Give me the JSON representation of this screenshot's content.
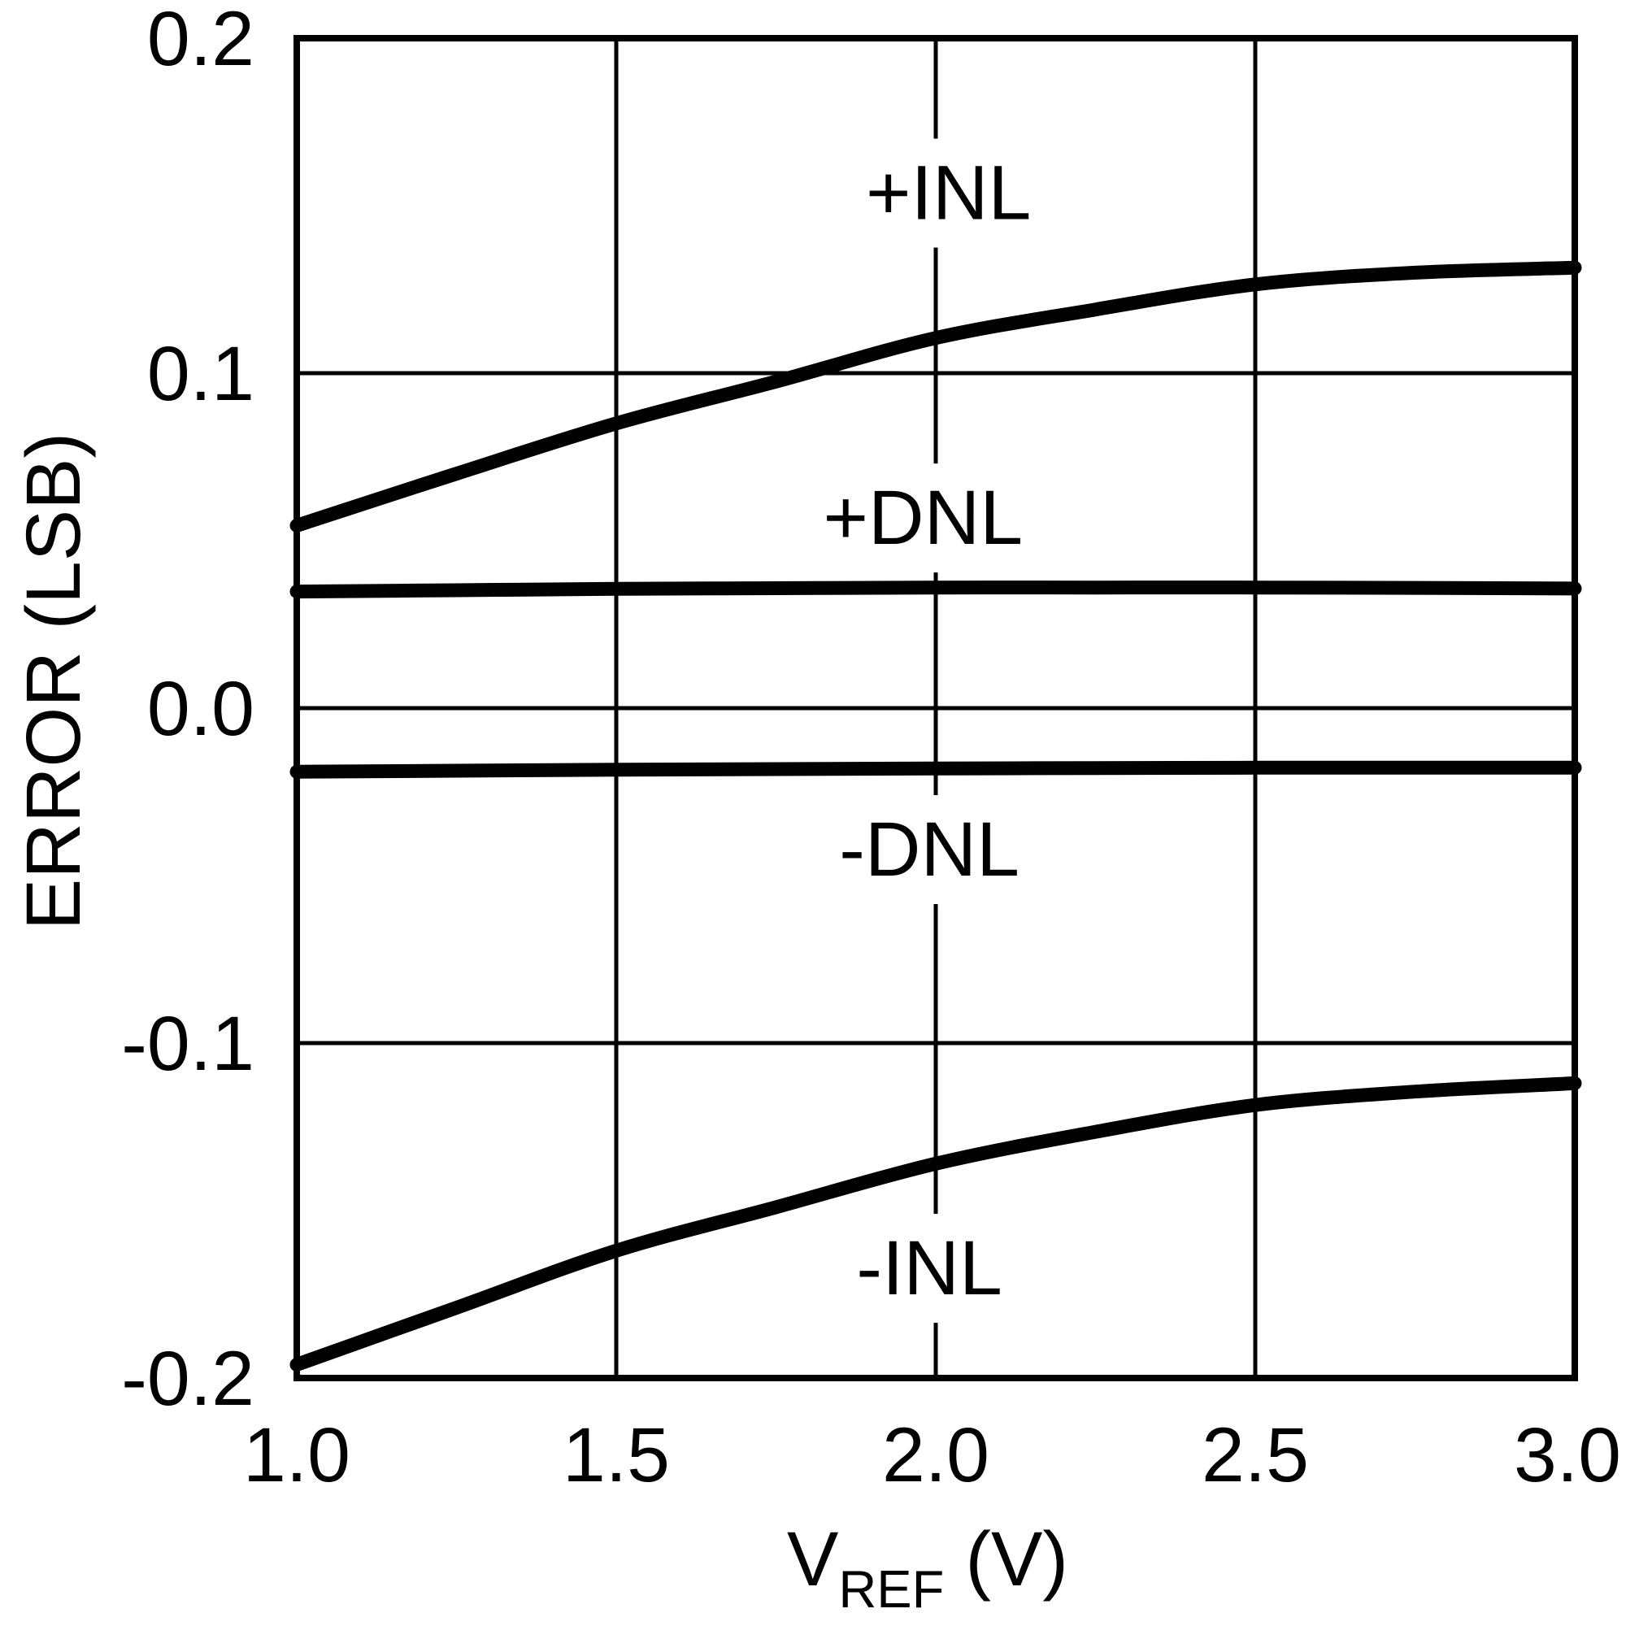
{
  "figure": {
    "background": "#ffffff",
    "ink": "#000000"
  },
  "chart_data": {
    "type": "line",
    "title": "",
    "xlabel": {
      "main": "V",
      "sub": "REF",
      "unit": "(V)"
    },
    "ylabel": "ERROR (LSB)",
    "xlim": [
      1.0,
      3.0
    ],
    "ylim": [
      -0.2,
      0.2
    ],
    "grid": true,
    "legend_position": "none (curves labeled inline on plot)",
    "x_ticks": [
      {
        "v": 1.0,
        "label": "1.0"
      },
      {
        "v": 1.5,
        "label": "1.5"
      },
      {
        "v": 2.0,
        "label": "2.0"
      },
      {
        "v": 2.5,
        "label": "2.5"
      },
      {
        "v": 3.0,
        "label": "3.0"
      }
    ],
    "y_ticks": [
      {
        "v": 0.2,
        "label": "0.2"
      },
      {
        "v": 0.1,
        "label": "0.1"
      },
      {
        "v": 0.0,
        "label": "0.0"
      },
      {
        "v": -0.1,
        "label": "-0.1"
      },
      {
        "v": -0.2,
        "label": "-0.2"
      }
    ],
    "x": [
      1.0,
      1.25,
      1.5,
      1.75,
      2.0,
      2.25,
      2.5,
      2.75,
      3.0
    ],
    "series": [
      {
        "name": "+INL",
        "values": [
          0.0545,
          0.07,
          0.085,
          0.0975,
          0.1105,
          0.119,
          0.1265,
          0.13,
          0.1315
        ],
        "label": {
          "text": "+INL",
          "x": 2.02,
          "y": 0.154
        }
      },
      {
        "name": "+DNL",
        "values": [
          0.0348,
          0.0352,
          0.0356,
          0.0358,
          0.036,
          0.036,
          0.036,
          0.0359,
          0.0357
        ],
        "label": {
          "text": "+DNL",
          "x": 1.98,
          "y": 0.057
        }
      },
      {
        "name": "-DNL",
        "values": [
          -0.019,
          -0.0187,
          -0.0184,
          -0.0182,
          -0.018,
          -0.0179,
          -0.0178,
          -0.0178,
          -0.0178
        ],
        "label": {
          "text": "-DNL",
          "x": 1.99,
          "y": -0.042
        }
      },
      {
        "name": "-INL",
        "values": [
          -0.196,
          -0.179,
          -0.162,
          -0.149,
          -0.136,
          -0.1265,
          -0.1185,
          -0.1145,
          -0.112
        ],
        "label": {
          "text": "-INL",
          "x": 1.99,
          "y": -0.167
        }
      }
    ]
  }
}
